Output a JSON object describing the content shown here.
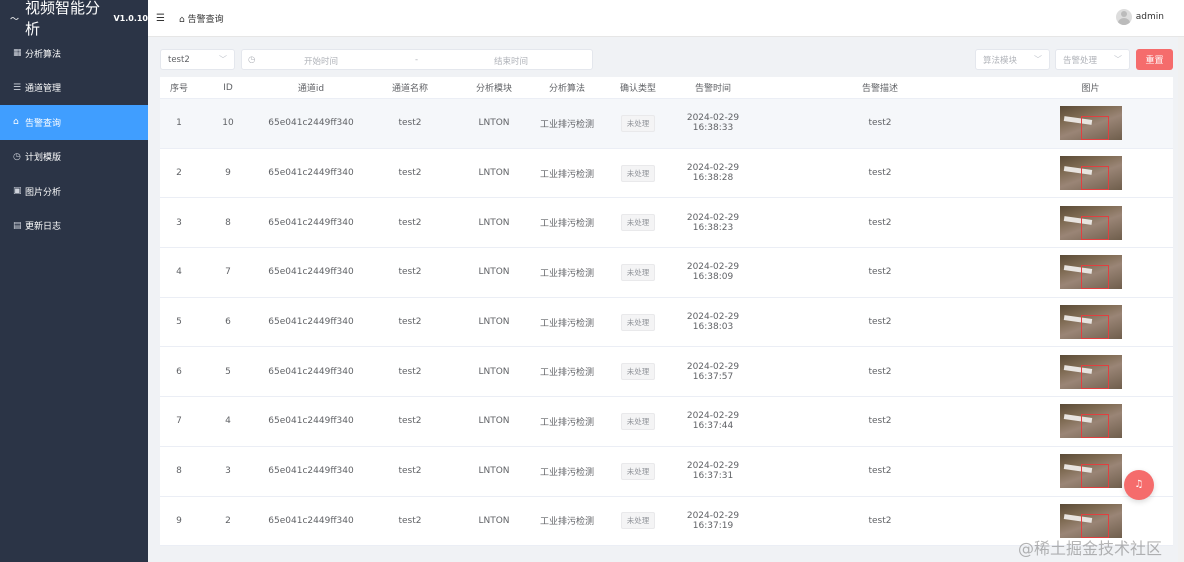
{
  "app": {
    "title": "视频智能分析",
    "version": "V1.0.10"
  },
  "sidebar": {
    "items": [
      {
        "label": "分析算法",
        "icon": "grid-icon"
      },
      {
        "label": "通道管理",
        "icon": "list-icon"
      },
      {
        "label": "告警查询",
        "icon": "bell-icon",
        "active": true
      },
      {
        "label": "计划模版",
        "icon": "clock-icon"
      },
      {
        "label": "图片分析",
        "icon": "picture-icon"
      },
      {
        "label": "更新日志",
        "icon": "document-icon"
      }
    ]
  },
  "header": {
    "breadcrumb": "告警查询",
    "user": "admin"
  },
  "filters": {
    "channel": "test2",
    "start_placeholder": "开始时间",
    "separator": "-",
    "end_placeholder": "结束时间",
    "module_placeholder": "算法模块",
    "process_placeholder": "告警处理",
    "reset_label": "重置"
  },
  "table": {
    "columns": [
      "序号",
      "ID",
      "通道id",
      "通道名称",
      "分析模块",
      "分析算法",
      "确认类型",
      "告警时间",
      "告警描述",
      "图片"
    ],
    "rows": [
      {
        "no": "1",
        "id": "10",
        "channel_id": "65e041c2449ff340",
        "channel_name": "test2",
        "module": "LNTON",
        "algorithm": "工业排污检测",
        "confirm": "未处理",
        "time": "2024-02-29 16:38:33",
        "desc": "test2"
      },
      {
        "no": "2",
        "id": "9",
        "channel_id": "65e041c2449ff340",
        "channel_name": "test2",
        "module": "LNTON",
        "algorithm": "工业排污检测",
        "confirm": "未处理",
        "time": "2024-02-29 16:38:28",
        "desc": "test2"
      },
      {
        "no": "3",
        "id": "8",
        "channel_id": "65e041c2449ff340",
        "channel_name": "test2",
        "module": "LNTON",
        "algorithm": "工业排污检测",
        "confirm": "未处理",
        "time": "2024-02-29 16:38:23",
        "desc": "test2"
      },
      {
        "no": "4",
        "id": "7",
        "channel_id": "65e041c2449ff340",
        "channel_name": "test2",
        "module": "LNTON",
        "algorithm": "工业排污检测",
        "confirm": "未处理",
        "time": "2024-02-29 16:38:09",
        "desc": "test2"
      },
      {
        "no": "5",
        "id": "6",
        "channel_id": "65e041c2449ff340",
        "channel_name": "test2",
        "module": "LNTON",
        "algorithm": "工业排污检测",
        "confirm": "未处理",
        "time": "2024-02-29 16:38:03",
        "desc": "test2"
      },
      {
        "no": "6",
        "id": "5",
        "channel_id": "65e041c2449ff340",
        "channel_name": "test2",
        "module": "LNTON",
        "algorithm": "工业排污检测",
        "confirm": "未处理",
        "time": "2024-02-29 16:37:57",
        "desc": "test2"
      },
      {
        "no": "7",
        "id": "4",
        "channel_id": "65e041c2449ff340",
        "channel_name": "test2",
        "module": "LNTON",
        "algorithm": "工业排污检测",
        "confirm": "未处理",
        "time": "2024-02-29 16:37:44",
        "desc": "test2"
      },
      {
        "no": "8",
        "id": "3",
        "channel_id": "65e041c2449ff340",
        "channel_name": "test2",
        "module": "LNTON",
        "algorithm": "工业排污检测",
        "confirm": "未处理",
        "time": "2024-02-29 16:37:31",
        "desc": "test2"
      },
      {
        "no": "9",
        "id": "2",
        "channel_id": "65e041c2449ff340",
        "channel_name": "test2",
        "module": "LNTON",
        "algorithm": "工业排污检测",
        "confirm": "未处理",
        "time": "2024-02-29 16:37:19",
        "desc": "test2"
      }
    ]
  },
  "watermark": "@稀土掘金技术社区",
  "colors": {
    "sidebar": "#2b3446",
    "active": "#409eff",
    "danger": "#f56c6c"
  }
}
